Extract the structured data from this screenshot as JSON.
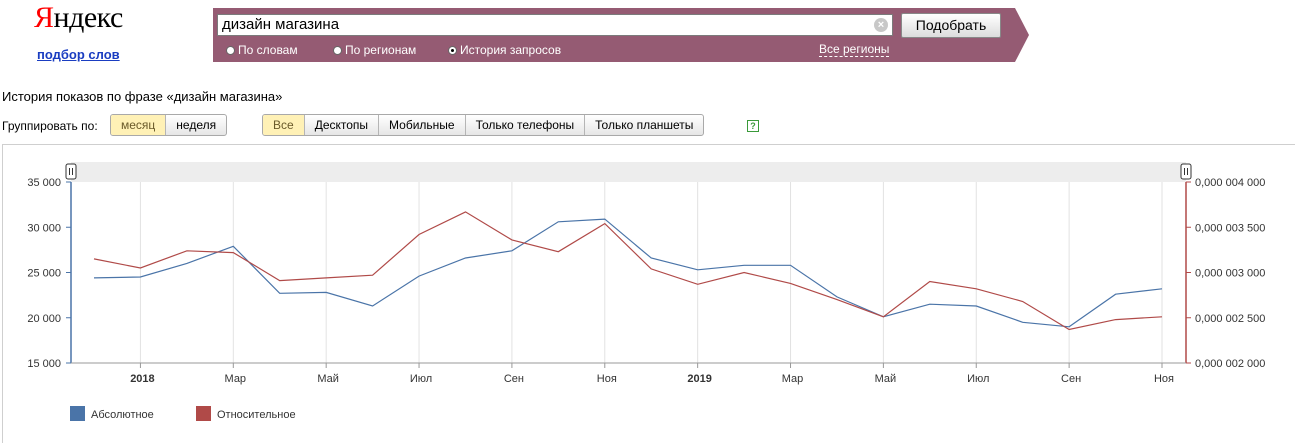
{
  "logo": {
    "first_letter": "Я",
    "rest": "ндекс"
  },
  "subtitle_link": "подбор слов",
  "search": {
    "query": "дизайн магазина",
    "clear": "×",
    "submit": "Подобрать",
    "modes": [
      {
        "label": "По словам",
        "checked": false
      },
      {
        "label": "По регионам",
        "checked": false
      },
      {
        "label": "История запросов",
        "checked": true
      }
    ],
    "regions": "Все регионы"
  },
  "phrase_title": "История показов по фразе «дизайн магазина»",
  "grouping": {
    "label": "Группировать по:",
    "options": [
      {
        "label": "месяц",
        "active": true
      },
      {
        "label": "неделя",
        "active": false
      }
    ]
  },
  "devices": [
    {
      "label": "Все",
      "active": true
    },
    {
      "label": "Десктопы",
      "active": false
    },
    {
      "label": "Мобильные",
      "active": false
    },
    {
      "label": "Только телефоны",
      "active": false
    },
    {
      "label": "Только планшеты",
      "active": false
    }
  ],
  "help": "?",
  "chart_data": {
    "type": "line",
    "x": [
      "2017-12",
      "2018-01",
      "2018-02",
      "2018-03",
      "2018-04",
      "2018-05",
      "2018-06",
      "2018-07",
      "2018-08",
      "2018-09",
      "2018-10",
      "2018-11",
      "2018-12",
      "2019-01",
      "2019-02",
      "2019-03",
      "2019-04",
      "2019-05",
      "2019-06",
      "2019-07",
      "2019-08",
      "2019-09",
      "2019-10",
      "2019-11"
    ],
    "x_tick_labels": [
      {
        "x": "2018-01",
        "label": "2018",
        "bold": true
      },
      {
        "x": "2018-03",
        "label": "Мар"
      },
      {
        "x": "2018-05",
        "label": "Май"
      },
      {
        "x": "2018-07",
        "label": "Июл"
      },
      {
        "x": "2018-09",
        "label": "Сен"
      },
      {
        "x": "2018-11",
        "label": "Ноя"
      },
      {
        "x": "2019-01",
        "label": "2019",
        "bold": true
      },
      {
        "x": "2019-03",
        "label": "Мар"
      },
      {
        "x": "2019-05",
        "label": "Май"
      },
      {
        "x": "2019-07",
        "label": "Июл"
      },
      {
        "x": "2019-09",
        "label": "Сен"
      },
      {
        "x": "2019-11",
        "label": "Ноя"
      }
    ],
    "y_left": {
      "range": [
        15000,
        35000
      ],
      "ticks": [
        "15 000",
        "20 000",
        "25 000",
        "30 000",
        "35 000"
      ]
    },
    "y_right": {
      "range": [
        2e-06,
        4e-06
      ],
      "ticks": [
        "0,000 002 000",
        "0,000 002 500",
        "0,000 003 000",
        "0,000 003 500",
        "0,000 004 000"
      ]
    },
    "series": [
      {
        "name": "Абсолютное",
        "color": "#4a74a8",
        "axis": "left",
        "values": [
          24400,
          24500,
          26000,
          27900,
          22700,
          22800,
          21300,
          24600,
          26600,
          27400,
          30600,
          30900,
          26600,
          25300,
          25800,
          25800,
          22300,
          20100,
          21500,
          21300,
          19500,
          19000,
          22600,
          23200
        ]
      },
      {
        "name": "Относительное",
        "color": "#b04a48",
        "axis": "right",
        "values": [
          3.15e-06,
          3.05e-06,
          3.24e-06,
          3.22e-06,
          2.91e-06,
          2.94e-06,
          2.97e-06,
          3.42e-06,
          3.67e-06,
          3.36e-06,
          3.23e-06,
          3.54e-06,
          3.04e-06,
          2.87e-06,
          3e-06,
          2.88e-06,
          2.7e-06,
          2.51e-06,
          2.9e-06,
          2.82e-06,
          2.68e-06,
          2.37e-06,
          2.48e-06,
          2.51e-06
        ]
      }
    ],
    "grid": "vertical",
    "legend_position": "bottom-left"
  }
}
